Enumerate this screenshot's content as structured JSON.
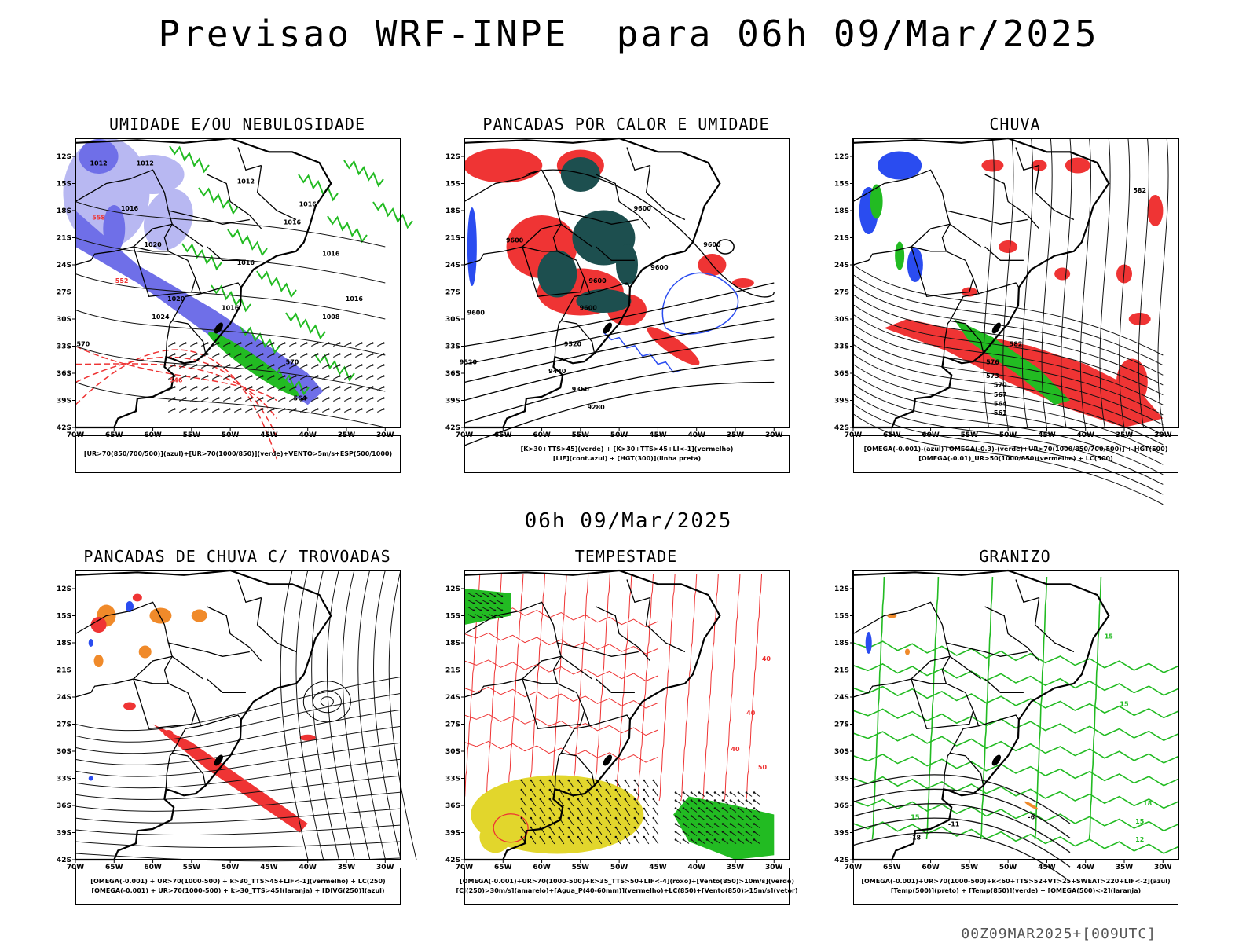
{
  "page": {
    "title": "Previsao WRF-INPE  para 06h 09/Mar/2025",
    "mid_title": "06h 09/Mar/2025",
    "footer": "00Z09MAR2025+[009UTC]"
  },
  "axes": {
    "lat_labels": [
      "12S",
      "15S",
      "18S",
      "21S",
      "24S",
      "27S",
      "30S",
      "33S",
      "36S",
      "39S",
      "42S"
    ],
    "lon_labels": [
      "70W",
      "65W",
      "60W",
      "55W",
      "50W",
      "45W",
      "40W",
      "35W",
      "30W"
    ]
  },
  "panels": [
    {
      "id": "umidade",
      "title": "UMIDADE E/OU NEBULOSIDADE",
      "legend": [
        "[UR>70(850/700/500)](azul)+[UR>70(1000/850)](verde)+VENTO>5m/s+ESP(500/1000)"
      ],
      "contour_labels": [
        "1012",
        "1012",
        "1012",
        "1016",
        "1016",
        "1016",
        "1020",
        "1016",
        "1016",
        "1016",
        "1020",
        "1024",
        "1016",
        "1008",
        "570",
        "570",
        "564",
        "558",
        "552",
        "546"
      ]
    },
    {
      "id": "pancadas_calor",
      "title": "PANCADAS POR CALOR E UMIDADE",
      "legend": [
        "[K>30+TTS>45](verde) + [K>30+TTS>45+LI<-1](vermelho)",
        "[LIF](cont.azul) + [HGT(300)](linha preta)"
      ],
      "contour_labels": [
        "9600",
        "9600",
        "9600",
        "9600",
        "9600",
        "9600",
        "9600",
        "9520",
        "9520",
        "9440",
        "9360",
        "9280"
      ]
    },
    {
      "id": "chuva",
      "title": "CHUVA",
      "legend": [
        "[OMEGA(-0.001)-(azul)+OMEGA(-0.3)-(verde)+UR>70(1000/850/700/500)] + HGT(500)",
        "[OMEGA(-0.01)_UR>50(1000/850)(vermelho) + LC(500)"
      ],
      "contour_labels": [
        "582",
        "582",
        "576",
        "573",
        "570",
        "567",
        "564",
        "561"
      ]
    },
    {
      "id": "pancadas_trovoadas",
      "title": "PANCADAS DE CHUVA C/ TROVOADAS",
      "legend": [
        "[OMEGA(-0.001) + UR>70(1000-500) + k>30_TTS>45+LIF<-1](vermelho) + LC(250)",
        "[OMEGA(-0.001) + UR>70(1000-500) + k>30_TTS>45](laranja) + [DIVG(250)](azul)"
      ],
      "contour_labels": []
    },
    {
      "id": "tempestade",
      "title": "TEMPESTADE",
      "legend": [
        "[OMEGA(-0.001)+UR>70(1000-500)+k>35_TTS>50+LIF<-4](roxo)+[Vento(850)>10m/s](verde)",
        "[CJ(250)>30m/s](amarelo)+[Agua_P(40-60mm)](vermelho)+LC(850)+[Vento(850)>15m/s](vetor)"
      ],
      "contour_labels": [
        "40",
        "40",
        "40",
        "50"
      ]
    },
    {
      "id": "granizo",
      "title": "GRANIZO",
      "legend": [
        "[OMEGA(-0.001)+UR>70(1000-500)+k<60+TTS>52+VT>25+SWEAT>220+LIF<-2](azul)",
        "[Temp(500)](preto) + [Temp(850)](verde) + [OMEGA(500)<-2](laranja)"
      ],
      "contour_labels": [
        "-6",
        "-11",
        "-18",
        "15",
        "15",
        "15",
        "18",
        "15",
        "12"
      ]
    }
  ],
  "colors": {
    "coast": "#000000",
    "blue_humid": "#6f6fe8",
    "light_blue": "#b8b8f2",
    "green": "#22bb22",
    "red": "#ef3434",
    "dark_teal": "#1d4f4f",
    "orange": "#f08a2a",
    "yellow": "#e2d62c",
    "lif_blue": "#2a4cf0",
    "contour_red": "#ee3333"
  }
}
